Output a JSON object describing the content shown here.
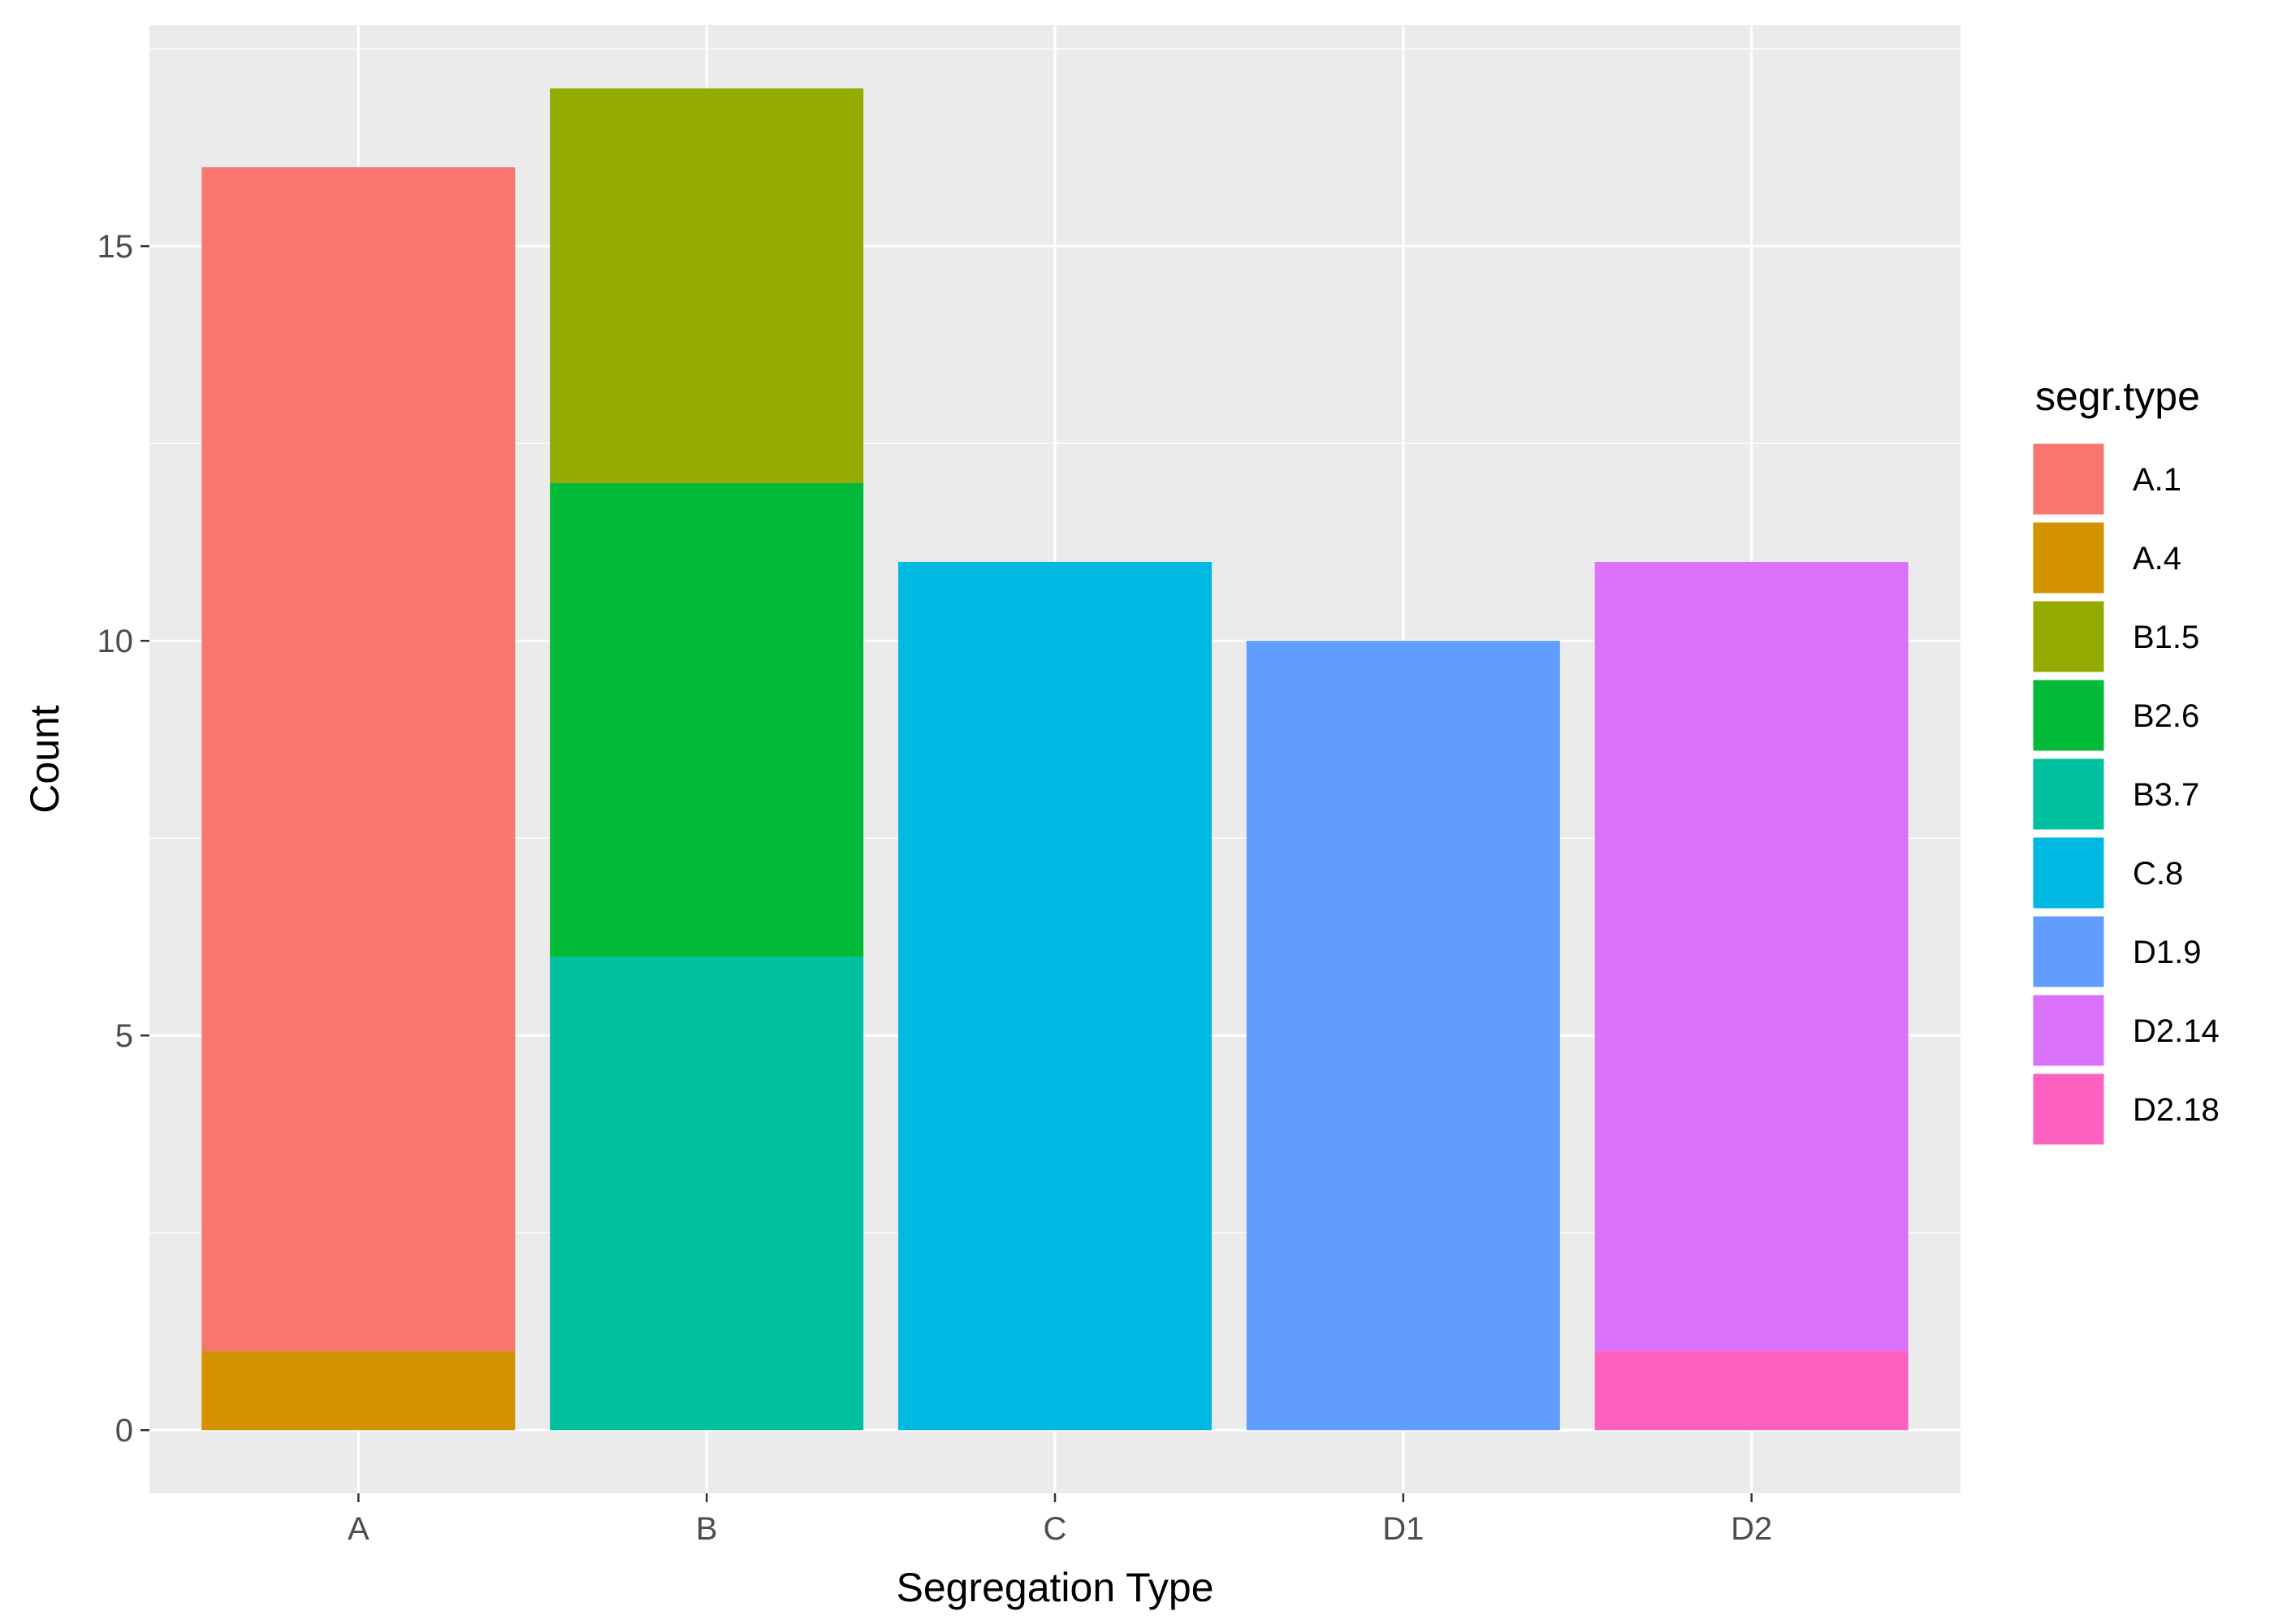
{
  "chart_data": {
    "type": "bar",
    "stacked": true,
    "title": "",
    "xlabel": "Segregation Type",
    "ylabel": "Count",
    "categories": [
      "A",
      "B",
      "C",
      "D1",
      "D2"
    ],
    "ylim": [
      -0.8,
      17.8
    ],
    "yticks": [
      0,
      5,
      10,
      15
    ],
    "grid": true,
    "legend": {
      "title": "segr.type",
      "placement": "right",
      "entries": [
        {
          "key": "A.1",
          "color": "#F8766D"
        },
        {
          "key": "A.4",
          "color": "#D39200"
        },
        {
          "key": "B1.5",
          "color": "#93AA00"
        },
        {
          "key": "B2.6",
          "color": "#00BA38"
        },
        {
          "key": "B3.7",
          "color": "#00C19F"
        },
        {
          "key": "C.8",
          "color": "#00B9E3"
        },
        {
          "key": "D1.9",
          "color": "#619CFF"
        },
        {
          "key": "D2.14",
          "color": "#DB72FB"
        },
        {
          "key": "D2.18",
          "color": "#FF61C3"
        }
      ]
    },
    "series": [
      {
        "name": "A.1",
        "values": [
          15,
          0,
          0,
          0,
          0
        ]
      },
      {
        "name": "A.4",
        "values": [
          1,
          0,
          0,
          0,
          0
        ]
      },
      {
        "name": "B1.5",
        "values": [
          0,
          5,
          0,
          0,
          0
        ]
      },
      {
        "name": "B2.6",
        "values": [
          0,
          6,
          0,
          0,
          0
        ]
      },
      {
        "name": "B3.7",
        "values": [
          0,
          6,
          0,
          0,
          0
        ]
      },
      {
        "name": "C.8",
        "values": [
          0,
          0,
          11,
          0,
          0
        ]
      },
      {
        "name": "D1.9",
        "values": [
          0,
          0,
          0,
          10,
          0
        ]
      },
      {
        "name": "D2.14",
        "values": [
          0,
          0,
          0,
          0,
          10
        ]
      },
      {
        "name": "D2.18",
        "values": [
          0,
          0,
          0,
          0,
          1
        ]
      }
    ],
    "colors": {
      "panel_background": "#EBEBEB",
      "grid": "#FFFFFF",
      "tick_text": "#4D4D4D",
      "tick_mark": "#333333"
    }
  }
}
